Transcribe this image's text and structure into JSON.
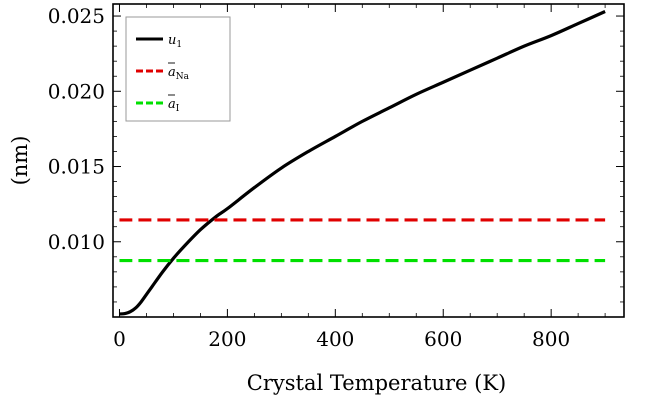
{
  "chart_data": {
    "type": "line",
    "title": "",
    "xlabel": "Crystal Temperature (K)",
    "ylabel": "(nm)",
    "xlim": [
      -12,
      935
    ],
    "ylim": [
      0.005,
      0.0258
    ],
    "x_ticks": [
      0,
      200,
      400,
      600,
      800
    ],
    "x_tick_labels": [
      "0",
      "200",
      "400",
      "600",
      "800"
    ],
    "y_ticks": [
      0.01,
      0.015,
      0.02,
      0.025
    ],
    "y_tick_labels": [
      "0.010",
      "0.015",
      "0.020",
      "0.025"
    ],
    "grid": false,
    "legend_position": "top-left",
    "series": [
      {
        "name": "u_1",
        "label_main": "u",
        "label_sub": "1",
        "color": "#000000",
        "style": "solid",
        "x": [
          0,
          10,
          20,
          30,
          40,
          50,
          60,
          80,
          100,
          120,
          150,
          180,
          200,
          250,
          300,
          350,
          400,
          450,
          500,
          550,
          600,
          650,
          700,
          750,
          800,
          850,
          900
        ],
        "y": [
          0.0052,
          0.00523,
          0.00535,
          0.0056,
          0.006,
          0.0065,
          0.007,
          0.008,
          0.0089,
          0.0097,
          0.0108,
          0.0117,
          0.0122,
          0.0136,
          0.0149,
          0.016,
          0.017,
          0.018,
          0.0189,
          0.0198,
          0.0206,
          0.0214,
          0.0222,
          0.023,
          0.0237,
          0.0245,
          0.0253
        ]
      },
      {
        "name": "a_Na",
        "label_main": "a",
        "label_sub": "Na",
        "color": "#e00000",
        "style": "dashed",
        "x": [
          0,
          900
        ],
        "y": [
          0.01145,
          0.01145
        ]
      },
      {
        "name": "a_I",
        "label_main": "a",
        "label_sub": "I",
        "color": "#00e000",
        "style": "dashed",
        "x": [
          0,
          900
        ],
        "y": [
          0.00875,
          0.00875
        ]
      }
    ]
  }
}
